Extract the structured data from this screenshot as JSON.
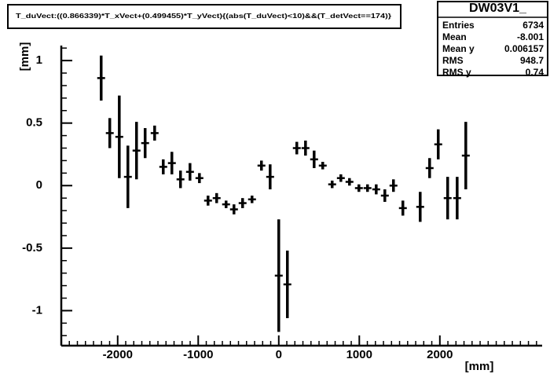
{
  "chart_data": {
    "type": "profile",
    "title": "T_duVect:((0.866339)*T_xVect+(0.499455)*T_yVect){(abs(T_duVect)<10)&&(T_detVect==174)}",
    "x_label": "[mm]",
    "y_label": "[mm]",
    "stats": {
      "name": "DW03V1_",
      "rows": [
        [
          "Entries",
          "6734"
        ],
        [
          "Mean",
          "-8.001"
        ],
        [
          "Mean y",
          "0.006157"
        ],
        [
          "RMS",
          "948.7"
        ],
        [
          "RMS y",
          "0.74"
        ]
      ]
    },
    "xlim": [
      -2700,
      3270
    ],
    "ylim": [
      -1.28,
      1.12
    ],
    "xticks": [
      -2000,
      -1000,
      0,
      1000,
      2000
    ],
    "yticks": [
      1,
      0.5,
      0,
      -0.5,
      -1
    ],
    "color": "#000000",
    "x": [
      -2205,
      -2098,
      -1980,
      -1873,
      -1766,
      -1659,
      -1541,
      -1434,
      -1327,
      -1220,
      -1102,
      -985,
      -878,
      -771,
      -654,
      -556,
      -449,
      -332,
      -215,
      -107,
      0,
      107,
      224,
      332,
      439,
      546,
      663,
      771,
      878,
      995,
      1102,
      1210,
      1317,
      1424,
      1541,
      1756,
      1873,
      1980,
      2097,
      2215,
      2322
    ],
    "values": [
      0.86,
      0.42,
      0.39,
      0.07,
      0.28,
      0.34,
      0.42,
      0.15,
      0.18,
      0.05,
      0.11,
      0.06,
      -0.12,
      -0.1,
      -0.15,
      -0.19,
      -0.14,
      -0.11,
      0.16,
      0.07,
      -0.72,
      -0.79,
      0.3,
      0.3,
      0.21,
      0.16,
      0.01,
      0.06,
      0.03,
      -0.02,
      -0.02,
      -0.03,
      -0.08,
      0.0,
      -0.18,
      -0.17,
      0.14,
      0.33,
      -0.1,
      -0.1,
      0.24
    ],
    "errors": [
      0.18,
      0.12,
      0.33,
      0.25,
      0.23,
      0.12,
      0.06,
      0.06,
      0.09,
      0.07,
      0.07,
      0.04,
      0.04,
      0.04,
      0.03,
      0.04,
      0.04,
      0.03,
      0.04,
      0.1,
      0.45,
      0.27,
      0.05,
      0.06,
      0.07,
      0.03,
      0.03,
      0.03,
      0.03,
      0.03,
      0.03,
      0.04,
      0.05,
      0.05,
      0.06,
      0.12,
      0.08,
      0.12,
      0.17,
      0.17,
      0.27
    ]
  }
}
